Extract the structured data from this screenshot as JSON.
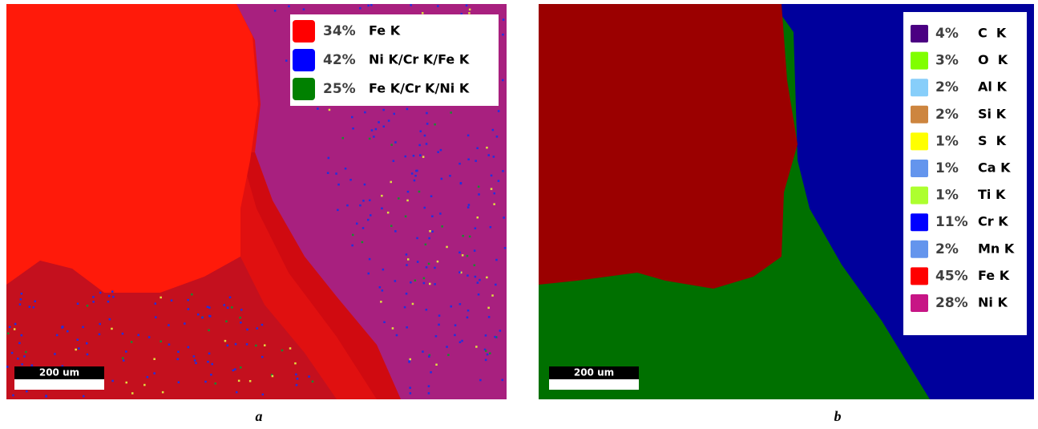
{
  "panels": [
    {
      "label": "a",
      "scale_bar": "200 um",
      "legend": [
        {
          "percent": "34%",
          "element": "Fe K",
          "color": "#ff0000"
        },
        {
          "percent": "42%",
          "element": "Ni K/Cr K/Fe K",
          "color": "#0000ff"
        },
        {
          "percent": "25%",
          "element": "Fe K/Cr K/Ni K",
          "color": "#008000"
        }
      ]
    },
    {
      "label": "b",
      "scale_bar": "200 um",
      "legend": [
        {
          "percent": "4%",
          "element": "C  K",
          "color": "#4b0082"
        },
        {
          "percent": "3%",
          "element": "O  K",
          "color": "#80ff00"
        },
        {
          "percent": "2%",
          "element": "Al K",
          "color": "#87cefa"
        },
        {
          "percent": "2%",
          "element": "Si K",
          "color": "#cd853f"
        },
        {
          "percent": "1%",
          "element": "S  K",
          "color": "#ffff00"
        },
        {
          "percent": "1%",
          "element": "Ca K",
          "color": "#6495ed"
        },
        {
          "percent": "1%",
          "element": "Ti K",
          "color": "#adff2f"
        },
        {
          "percent": "11%",
          "element": "Cr K",
          "color": "#0000ff"
        },
        {
          "percent": "2%",
          "element": "Mn K",
          "color": "#6495ed"
        },
        {
          "percent": "45%",
          "element": "Fe K",
          "color": "#ff0000"
        },
        {
          "percent": "28%",
          "element": "Ni K",
          "color": "#c71585"
        }
      ]
    }
  ]
}
